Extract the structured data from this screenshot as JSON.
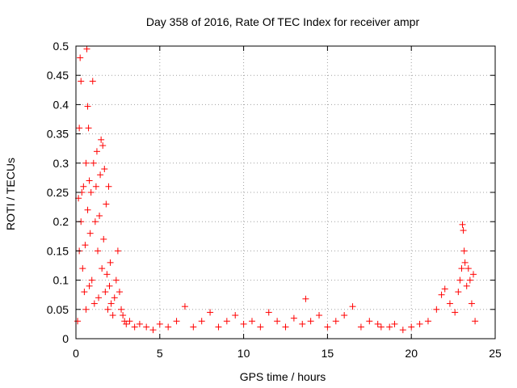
{
  "chart_data": {
    "type": "scatter",
    "title": "Day 358 of 2016, Rate Of TEC Index for receiver ampr",
    "xlabel": "GPS time / hours",
    "ylabel": "ROTI / TECUs",
    "xlim": [
      0,
      25
    ],
    "ylim": [
      0,
      0.5
    ],
    "xticks": [
      "0",
      "5",
      "10",
      "15",
      "20",
      "25"
    ],
    "yticks": [
      "0",
      "0.05",
      "0.1",
      "0.15",
      "0.2",
      "0.25",
      "0.3",
      "0.35",
      "0.4",
      "0.45",
      "0.5"
    ],
    "grid": true,
    "marker": "+",
    "series_color": "#ff0000",
    "series": [
      {
        "x": [
          0.1,
          0.15,
          0.2,
          0.2,
          0.25,
          0.3,
          0.3,
          0.35,
          0.4,
          0.45,
          0.5,
          0.55,
          0.6,
          0.6,
          0.65,
          0.7,
          0.7,
          0.75,
          0.8,
          0.8,
          0.85,
          0.9,
          0.95,
          1.0,
          1.05,
          1.1,
          1.15,
          1.2,
          1.25,
          1.3,
          1.35,
          1.4,
          1.45,
          1.5,
          1.55,
          1.6,
          1.65,
          1.7,
          1.75,
          1.8,
          1.85,
          1.9,
          1.95,
          2.0,
          2.05,
          2.1,
          2.2,
          2.3,
          2.4,
          2.5,
          2.6,
          2.7,
          2.8,
          2.9,
          3.0,
          3.2,
          3.5,
          3.8,
          4.2,
          4.6,
          5.0,
          5.5,
          6.0,
          6.5,
          7.0,
          7.5,
          8.0,
          8.5,
          9.0,
          9.5,
          10.0,
          10.5,
          11.0,
          11.5,
          12.0,
          12.5,
          13.0,
          13.5,
          13.7,
          14.0,
          14.5,
          15.0,
          15.5,
          16.0,
          16.5,
          17.0,
          17.5,
          18.0,
          18.2,
          18.7,
          19.0,
          19.5,
          20.0,
          20.5,
          21.0,
          21.5,
          21.8,
          22.0,
          22.3,
          22.6,
          22.8,
          22.9,
          23.0,
          23.05,
          23.1,
          23.15,
          23.2,
          23.3,
          23.4,
          23.5,
          23.6,
          23.7,
          23.8
        ],
        "y": [
          0.03,
          0.24,
          0.36,
          0.15,
          0.48,
          0.44,
          0.2,
          0.25,
          0.12,
          0.26,
          0.08,
          0.16,
          0.3,
          0.05,
          0.495,
          0.397,
          0.22,
          0.36,
          0.27,
          0.09,
          0.18,
          0.25,
          0.1,
          0.44,
          0.3,
          0.06,
          0.2,
          0.26,
          0.32,
          0.15,
          0.07,
          0.21,
          0.28,
          0.34,
          0.12,
          0.33,
          0.17,
          0.29,
          0.08,
          0.23,
          0.11,
          0.05,
          0.26,
          0.09,
          0.13,
          0.06,
          0.04,
          0.07,
          0.1,
          0.15,
          0.08,
          0.05,
          0.04,
          0.03,
          0.025,
          0.03,
          0.02,
          0.025,
          0.02,
          0.015,
          0.025,
          0.02,
          0.03,
          0.055,
          0.02,
          0.03,
          0.045,
          0.02,
          0.03,
          0.04,
          0.025,
          0.03,
          0.02,
          0.045,
          0.03,
          0.02,
          0.035,
          0.025,
          0.068,
          0.03,
          0.04,
          0.02,
          0.03,
          0.04,
          0.055,
          0.02,
          0.03,
          0.025,
          0.02,
          0.02,
          0.025,
          0.015,
          0.02,
          0.025,
          0.03,
          0.05,
          0.075,
          0.085,
          0.06,
          0.045,
          0.08,
          0.1,
          0.12,
          0.195,
          0.185,
          0.15,
          0.13,
          0.09,
          0.12,
          0.1,
          0.06,
          0.11,
          0.03
        ]
      }
    ]
  }
}
